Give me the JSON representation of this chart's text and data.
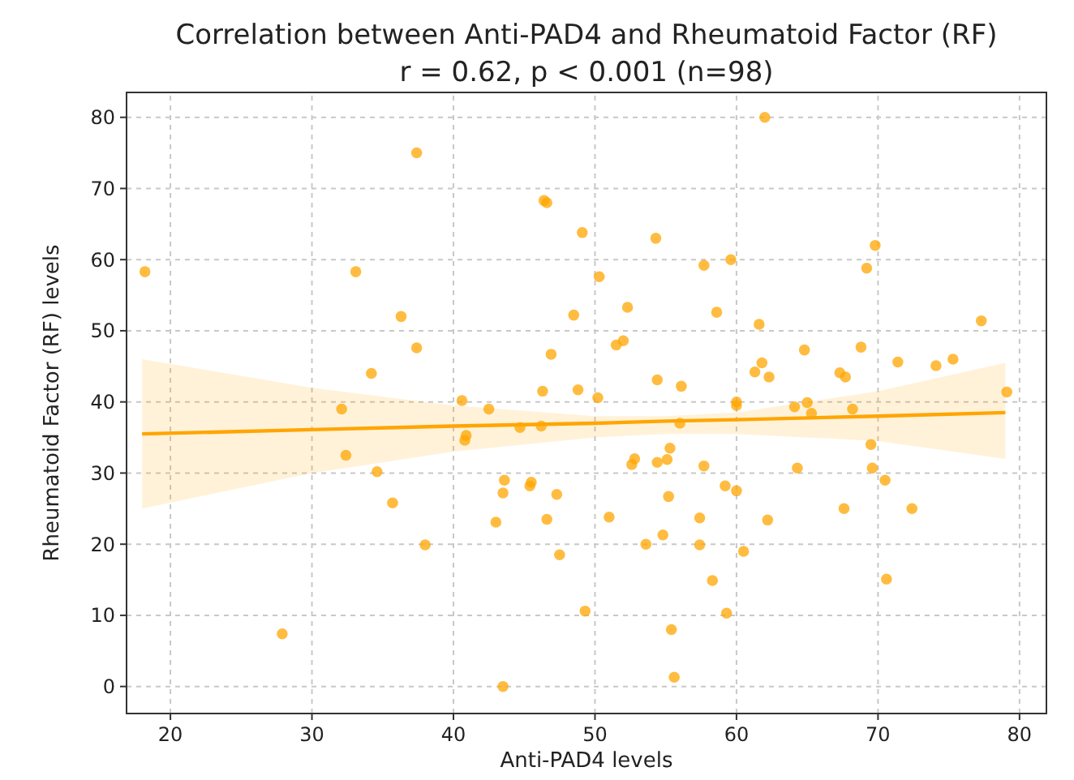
{
  "chart_data": {
    "type": "scatter",
    "title": "Correlation between Anti-PAD4 and Rheumatoid Factor (RF)",
    "subtitle": "r = 0.62, p < 0.001 (n=98)",
    "xlabel": "Anti-PAD4 levels",
    "ylabel": "Rheumatoid Factor (RF) levels",
    "xlim": [
      16.9,
      81.9
    ],
    "ylim": [
      -3.8,
      83.5
    ],
    "xticks": [
      20,
      30,
      40,
      50,
      60,
      70,
      80
    ],
    "yticks": [
      0,
      10,
      20,
      30,
      40,
      50,
      60,
      70,
      80
    ],
    "grid": true,
    "marker": "circle",
    "series": [
      {
        "color": "#ffa500",
        "x": [
          18.2,
          27.9,
          32.1,
          32.4,
          33.1,
          34.2,
          34.6,
          35.7,
          36.3,
          37.4,
          37.4,
          38.0,
          40.6,
          40.8,
          40.9,
          42.5,
          43.0,
          43.5,
          43.5,
          43.6,
          44.7,
          45.4,
          45.5,
          46.2,
          46.3,
          46.4,
          46.6,
          46.6,
          46.9,
          47.3,
          47.5,
          48.5,
          48.8,
          49.1,
          49.3,
          50.2,
          50.3,
          51.0,
          51.5,
          52.0,
          52.3,
          52.6,
          52.8,
          53.6,
          54.3,
          54.4,
          54.4,
          54.8,
          55.1,
          55.3,
          55.2,
          55.4,
          55.6,
          56.0,
          56.1,
          57.4,
          57.4,
          57.7,
          57.7,
          58.3,
          58.6,
          59.2,
          59.3,
          59.6,
          60.0,
          60.0,
          60.0,
          60.5,
          61.3,
          61.6,
          61.8,
          62.0,
          62.2,
          62.3,
          64.1,
          64.3,
          64.8,
          65.0,
          65.3,
          67.3,
          67.6,
          67.7,
          68.2,
          68.8,
          69.2,
          69.5,
          69.6,
          69.8,
          70.5,
          70.6,
          71.4,
          72.4,
          74.1,
          75.3,
          77.3,
          79.1
        ],
        "values": [
          58.3,
          7.4,
          39.0,
          32.5,
          58.3,
          44.0,
          30.2,
          25.8,
          52.0,
          75.0,
          47.6,
          19.9,
          40.2,
          34.6,
          35.3,
          39.0,
          23.1,
          0.0,
          27.2,
          29.0,
          36.4,
          28.2,
          28.7,
          36.6,
          41.5,
          68.3,
          68.0,
          23.5,
          46.7,
          27.0,
          18.5,
          52.2,
          41.7,
          63.8,
          10.6,
          40.6,
          57.6,
          23.8,
          48.0,
          48.6,
          53.3,
          31.2,
          32.0,
          20.0,
          63.0,
          43.1,
          31.5,
          21.3,
          31.9,
          33.5,
          26.7,
          8.0,
          1.3,
          37.0,
          42.2,
          23.7,
          19.9,
          59.2,
          31.0,
          14.9,
          52.6,
          28.2,
          10.3,
          60.0,
          27.5,
          39.5,
          40.0,
          19.0,
          44.2,
          50.9,
          45.5,
          80.0,
          23.4,
          43.5,
          39.3,
          30.7,
          47.3,
          39.9,
          38.4,
          44.1,
          25.0,
          43.5,
          39.0,
          47.7,
          58.8,
          34.0,
          30.7,
          62.0,
          29.0,
          15.1,
          45.6,
          25.0,
          45.1,
          46.0,
          51.4,
          41.4
        ]
      },
      {
        "type": "line",
        "color": "#ffa500",
        "marker": "none",
        "line_style": "solid",
        "x": [
          18,
          30,
          40,
          50,
          55,
          60,
          70,
          79
        ],
        "values": [
          35.5,
          36.1,
          36.6,
          37.0,
          37.3,
          37.5,
          38.0,
          38.5
        ],
        "lower": [
          25,
          30,
          33,
          35,
          35.5,
          35.5,
          34.5,
          32
        ],
        "upper": [
          46,
          42,
          39.5,
          38,
          38,
          38.5,
          41.5,
          45.5
        ]
      }
    ]
  }
}
